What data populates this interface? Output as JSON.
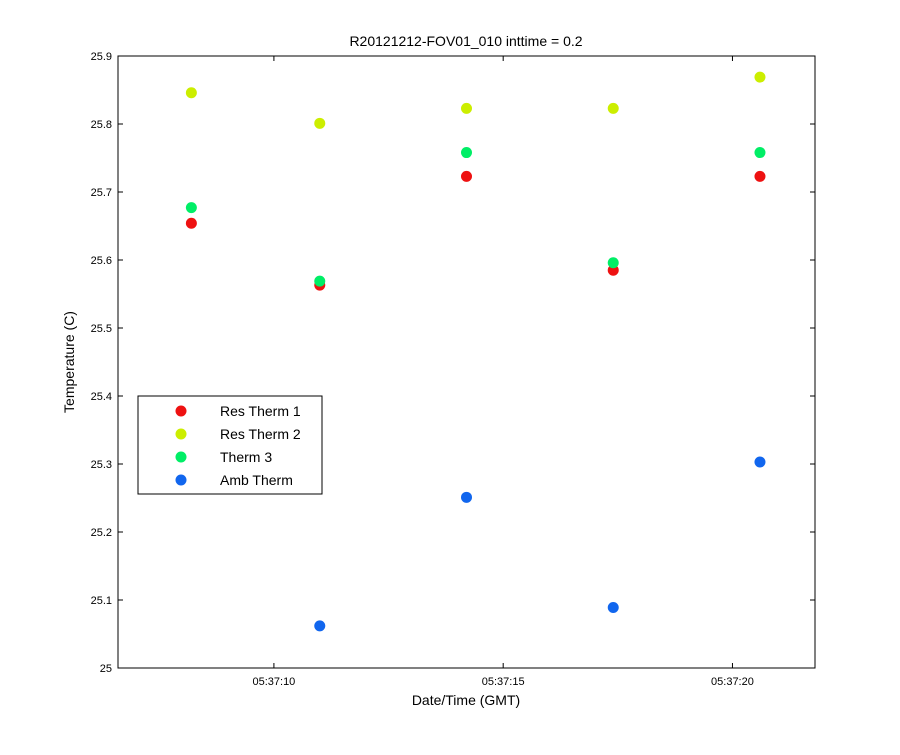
{
  "chart_data": {
    "type": "scatter",
    "title": "R20121212-FOV01_010 inttime = 0.2",
    "xlabel": "Date/Time (GMT)",
    "ylabel": "Temperature (C)",
    "x_unit": "seconds",
    "xlim": [
      "05:37:06.6",
      "05:37:21.8"
    ],
    "ylim": [
      25.0,
      25.9
    ],
    "x_ticks": [
      "05:37:10",
      "05:37:15",
      "05:37:20"
    ],
    "y_ticks": [
      "25",
      "25.1",
      "25.2",
      "25.3",
      "25.4",
      "25.5",
      "25.6",
      "25.7",
      "25.8",
      "25.9"
    ],
    "x": [
      "05:37:08.2",
      "05:37:11.0",
      "05:37:14.2",
      "05:37:17.4",
      "05:37:20.6"
    ],
    "series": [
      {
        "name": "Res Therm 1",
        "color": "#ee1111",
        "values": [
          25.654,
          25.563,
          25.723,
          25.585,
          25.723
        ]
      },
      {
        "name": "Res Therm 2",
        "color": "#ccee00",
        "values": [
          25.846,
          25.801,
          25.823,
          25.823,
          25.869
        ]
      },
      {
        "name": "Therm 3",
        "color": "#00ee66",
        "values": [
          25.677,
          25.569,
          25.758,
          25.596,
          25.758
        ]
      },
      {
        "name": "Amb Therm",
        "color": "#1166ee",
        "values": [
          null,
          25.062,
          25.251,
          25.089,
          25.303
        ]
      }
    ],
    "grid": false,
    "legend_position": "left-middle"
  }
}
